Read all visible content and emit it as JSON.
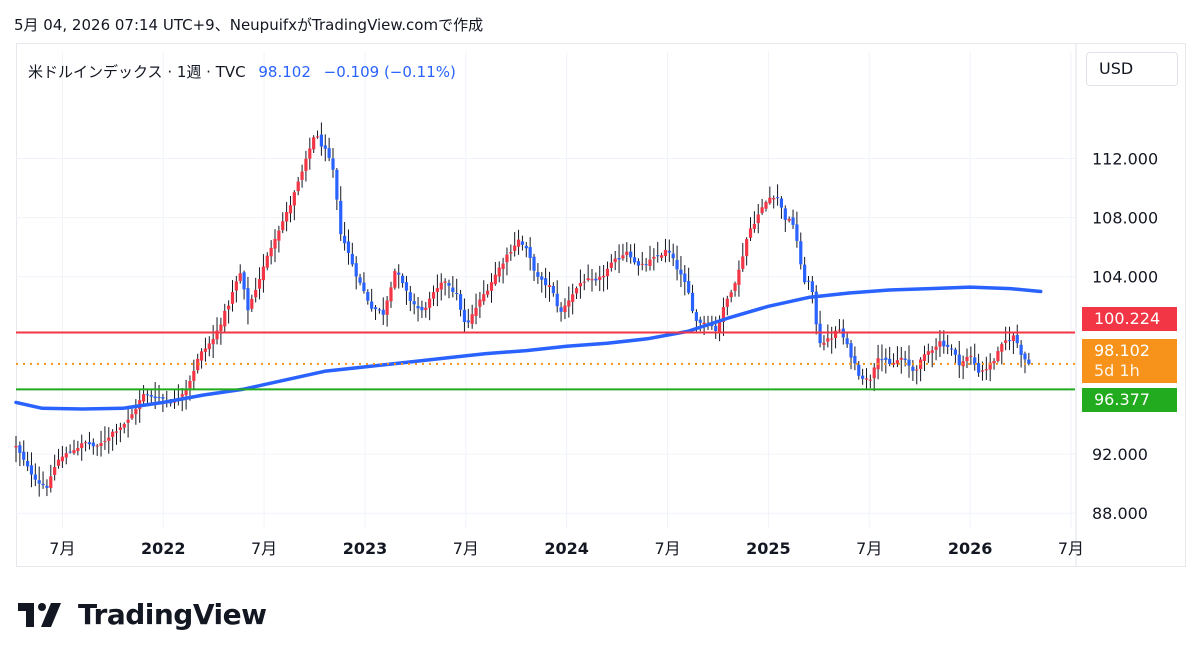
{
  "header": {
    "caption": "5月 04, 2026 07:14 UTC+9、NeupuifxがTradingView.comで作成"
  },
  "legend": {
    "symbol": "米ドルインデックス · 1週 · TVC",
    "last": "98.102",
    "change": "−0.109 (−0.11%)"
  },
  "currency_button": "USD",
  "price_tags": {
    "red_line": {
      "label": "100.224",
      "value": 100.224,
      "color": "#f23645"
    },
    "last_price": {
      "label": "98.102",
      "value": 98.102,
      "color": "#f7931a"
    },
    "countdown": "5d 1h",
    "green_line": {
      "label": "96.377",
      "value": 96.377,
      "color": "#22ab1e"
    }
  },
  "brand": {
    "name": "TradingView"
  },
  "colors": {
    "up": "#f23645",
    "down": "#2962ff",
    "ma": "#2962ff",
    "last_dotted": "#f7931a"
  },
  "chart_data": {
    "type": "candlestick",
    "title": "米ドルインデックス · 1週 · TVC",
    "y_ticks": [
      "88.000",
      "92.000",
      "104.000",
      "108.000",
      "112.000"
    ],
    "y_tick_values": [
      88,
      92,
      104,
      108,
      112
    ],
    "ylim": [
      87.0,
      116.5
    ],
    "x_ticks": [
      {
        "label": "7月",
        "x": 2021.5,
        "bold": false
      },
      {
        "label": "2022",
        "x": 2022.0,
        "bold": true
      },
      {
        "label": "7月",
        "x": 2022.5,
        "bold": false
      },
      {
        "label": "2023",
        "x": 2023.0,
        "bold": true
      },
      {
        "label": "7月",
        "x": 2023.5,
        "bold": false
      },
      {
        "label": "2024",
        "x": 2024.0,
        "bold": true
      },
      {
        "label": "7月",
        "x": 2024.5,
        "bold": false
      },
      {
        "label": "2025",
        "x": 2025.0,
        "bold": true
      },
      {
        "label": "7月",
        "x": 2025.5,
        "bold": false
      },
      {
        "label": "2026",
        "x": 2026.0,
        "bold": true
      },
      {
        "label": "7月",
        "x": 2026.5,
        "bold": false
      }
    ],
    "xlim": [
      2021.27,
      2026.52
    ],
    "horizontal_lines": [
      {
        "name": "resistance",
        "value": 100.224,
        "color": "#f23645",
        "style": "solid"
      },
      {
        "name": "last",
        "value": 98.102,
        "color": "#f7931a",
        "style": "dotted"
      },
      {
        "name": "support",
        "value": 96.377,
        "color": "#22ab1e",
        "style": "solid"
      }
    ],
    "close_path": [
      [
        2021.27,
        92.5
      ],
      [
        2021.33,
        91.0
      ],
      [
        2021.39,
        90.0
      ],
      [
        2021.43,
        89.8
      ],
      [
        2021.47,
        91.5
      ],
      [
        2021.55,
        92.3
      ],
      [
        2021.62,
        92.8
      ],
      [
        2021.67,
        92.4
      ],
      [
        2021.75,
        93.5
      ],
      [
        2021.83,
        94.3
      ],
      [
        2021.9,
        96.0
      ],
      [
        2021.97,
        95.9
      ],
      [
        2022.05,
        95.5
      ],
      [
        2022.12,
        96.6
      ],
      [
        2022.18,
        98.7
      ],
      [
        2022.25,
        99.8
      ],
      [
        2022.32,
        102.0
      ],
      [
        2022.38,
        104.3
      ],
      [
        2022.42,
        101.8
      ],
      [
        2022.48,
        104.0
      ],
      [
        2022.55,
        106.6
      ],
      [
        2022.62,
        108.5
      ],
      [
        2022.7,
        111.5
      ],
      [
        2022.75,
        113.7
      ],
      [
        2022.8,
        112.6
      ],
      [
        2022.84,
        111.3
      ],
      [
        2022.88,
        107.0
      ],
      [
        2022.92,
        105.5
      ],
      [
        2022.97,
        103.7
      ],
      [
        2023.03,
        102.0
      ],
      [
        2023.09,
        101.5
      ],
      [
        2023.15,
        104.5
      ],
      [
        2023.22,
        102.5
      ],
      [
        2023.28,
        101.6
      ],
      [
        2023.34,
        102.8
      ],
      [
        2023.4,
        103.8
      ],
      [
        2023.46,
        102.6
      ],
      [
        2023.5,
        100.5
      ],
      [
        2023.55,
        101.9
      ],
      [
        2023.62,
        103.5
      ],
      [
        2023.7,
        105.4
      ],
      [
        2023.76,
        106.5
      ],
      [
        2023.8,
        105.8
      ],
      [
        2023.86,
        103.8
      ],
      [
        2023.92,
        103.3
      ],
      [
        2023.97,
        101.5
      ],
      [
        2024.02,
        102.7
      ],
      [
        2024.08,
        103.8
      ],
      [
        2024.15,
        103.6
      ],
      [
        2024.22,
        104.8
      ],
      [
        2024.3,
        105.8
      ],
      [
        2024.36,
        104.6
      ],
      [
        2024.42,
        105.1
      ],
      [
        2024.5,
        105.8
      ],
      [
        2024.54,
        104.8
      ],
      [
        2024.6,
        103.1
      ],
      [
        2024.64,
        101.0
      ],
      [
        2024.7,
        100.9
      ],
      [
        2024.74,
        100.4
      ],
      [
        2024.79,
        102.3
      ],
      [
        2024.85,
        104.2
      ],
      [
        2024.9,
        107.0
      ],
      [
        2024.95,
        108.2
      ],
      [
        2025.0,
        109.3
      ],
      [
        2025.04,
        109.6
      ],
      [
        2025.08,
        108.0
      ],
      [
        2025.13,
        107.5
      ],
      [
        2025.17,
        103.8
      ],
      [
        2025.21,
        103.6
      ],
      [
        2025.25,
        99.6
      ],
      [
        2025.3,
        99.7
      ],
      [
        2025.35,
        100.5
      ],
      [
        2025.4,
        99.0
      ],
      [
        2025.45,
        97.4
      ],
      [
        2025.5,
        96.9
      ],
      [
        2025.54,
        98.7
      ],
      [
        2025.6,
        98.0
      ],
      [
        2025.66,
        98.5
      ],
      [
        2025.72,
        97.6
      ],
      [
        2025.79,
        98.9
      ],
      [
        2025.85,
        99.6
      ],
      [
        2025.9,
        99.2
      ],
      [
        2025.95,
        98.1
      ],
      [
        2026.0,
        98.7
      ],
      [
        2026.04,
        97.6
      ],
      [
        2026.08,
        97.8
      ],
      [
        2026.12,
        98.4
      ],
      [
        2026.17,
        99.6
      ],
      [
        2026.22,
        100.0
      ],
      [
        2026.26,
        98.6
      ],
      [
        2026.3,
        98.102
      ]
    ],
    "moving_average": [
      [
        2021.27,
        95.5
      ],
      [
        2021.4,
        95.1
      ],
      [
        2021.6,
        95.05
      ],
      [
        2021.8,
        95.1
      ],
      [
        2022.0,
        95.5
      ],
      [
        2022.2,
        96.0
      ],
      [
        2022.4,
        96.4
      ],
      [
        2022.6,
        97.0
      ],
      [
        2022.8,
        97.6
      ],
      [
        2023.0,
        97.9
      ],
      [
        2023.2,
        98.2
      ],
      [
        2023.4,
        98.5
      ],
      [
        2023.6,
        98.8
      ],
      [
        2023.8,
        99.0
      ],
      [
        2024.0,
        99.3
      ],
      [
        2024.2,
        99.5
      ],
      [
        2024.4,
        99.8
      ],
      [
        2024.6,
        100.3
      ],
      [
        2024.8,
        101.2
      ],
      [
        2025.0,
        102.0
      ],
      [
        2025.2,
        102.6
      ],
      [
        2025.4,
        102.9
      ],
      [
        2025.6,
        103.1
      ],
      [
        2025.8,
        103.2
      ],
      [
        2026.0,
        103.3
      ],
      [
        2026.2,
        103.2
      ],
      [
        2026.35,
        103.0
      ]
    ]
  }
}
